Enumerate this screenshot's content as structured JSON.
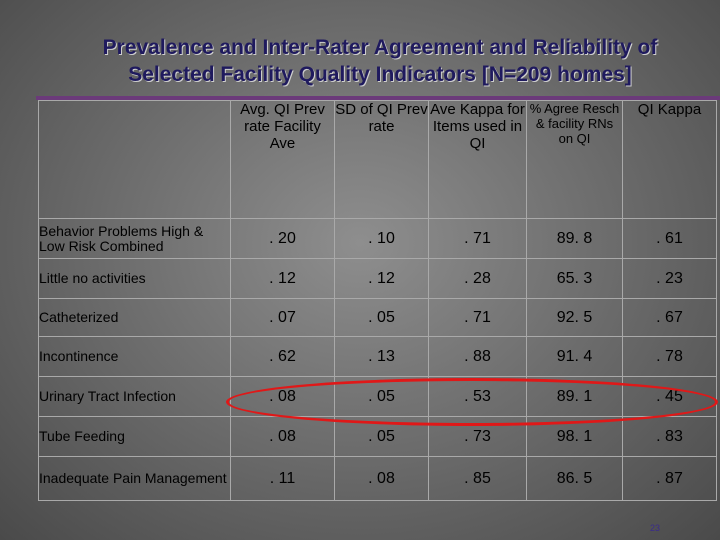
{
  "title": {
    "line1": "Prevalence and Inter-Rater Agreement and Reliability of",
    "line2": "Selected Facility Quality Indicators  [N=209 homes]"
  },
  "table": {
    "columns": [
      "Avg. QI Prev rate Facility Ave",
      "SD of QI Prev rate",
      "Ave Kappa for Items used in QI",
      "% Agree Resch & facility RNs on QI",
      "QI Kappa"
    ],
    "rows": [
      {
        "label": "Behavior Problems High & Low Risk Combined",
        "values": [
          ". 20",
          ". 10",
          ". 71",
          "89. 8",
          ". 61"
        ]
      },
      {
        "label": "Little no activities",
        "values": [
          ". 12",
          ". 12",
          ". 28",
          "65. 3",
          ". 23"
        ]
      },
      {
        "label": "Catheterized",
        "values": [
          ". 07",
          ". 05",
          ". 71",
          "92. 5",
          ". 67"
        ]
      },
      {
        "label": "Incontinence",
        "values": [
          ". 62",
          ". 13",
          ". 88",
          "91. 4",
          ". 78"
        ]
      },
      {
        "label": "Urinary Tract Infection",
        "values": [
          ". 08",
          ". 05",
          ". 53",
          "89. 1",
          ". 45"
        ]
      },
      {
        "label": "Tube Feeding",
        "values": [
          ". 08",
          ". 05",
          ". 73",
          "98. 1",
          ". 83"
        ]
      },
      {
        "label": "Inadequate Pain Management",
        "values": [
          ". 11",
          ". 08",
          ". 85",
          "86. 5",
          ". 87"
        ]
      }
    ]
  },
  "page_number": "23",
  "colors": {
    "title": "#1f1a5e",
    "rule": "#6b3a7a",
    "highlight_oval": "#e01818",
    "page_number": "#3a2b8c"
  }
}
